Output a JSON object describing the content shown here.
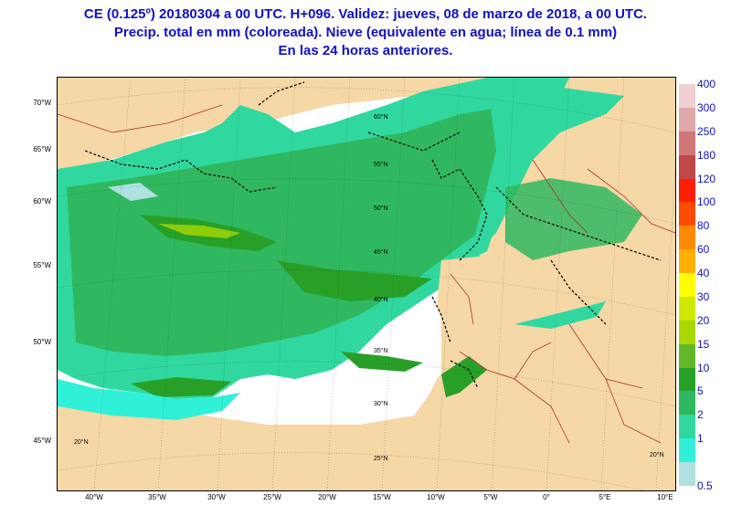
{
  "title": {
    "line1": "CE (0.125º) 20180304  a 00 UTC.  H+096. Validez: jueves, 08 de marzo de 2018,  a  00 UTC.",
    "line2": "Precip. total en mm (coloreada). Nieve (equivalente en agua; línea de 0.1 mm)",
    "line3": "En las 24 horas anteriores."
  },
  "legend": {
    "levels": [
      {
        "label": "400",
        "color": "#f0d0d0"
      },
      {
        "label": "300",
        "color": "#e0a8a8"
      },
      {
        "label": "250",
        "color": "#d07878"
      },
      {
        "label": "180",
        "color": "#c04848"
      },
      {
        "label": "120",
        "color": "#ff1e00"
      },
      {
        "label": "100",
        "color": "#ff4a00"
      },
      {
        "label": "80",
        "color": "#ff8a00"
      },
      {
        "label": "60",
        "color": "#ffb000"
      },
      {
        "label": "40",
        "color": "#ffff00"
      },
      {
        "label": "30",
        "color": "#d0e800"
      },
      {
        "label": "20",
        "color": "#a8d800"
      },
      {
        "label": "15",
        "color": "#60b828"
      },
      {
        "label": "10",
        "color": "#28a028"
      },
      {
        "label": "5",
        "color": "#30b860"
      },
      {
        "label": "2",
        "color": "#30d8a0"
      },
      {
        "label": "1",
        "color": "#30f0d8"
      },
      {
        "label": "0.5",
        "color": "#b0e0e0"
      }
    ]
  },
  "axes": {
    "left_labels": [
      "70°W",
      "65°W",
      "60°W",
      "55°W",
      "50°W",
      "45°W"
    ],
    "bottom_labels": [
      "40°W",
      "35°W",
      "30°W",
      "25°W",
      "20°W",
      "15°W",
      "10°W",
      "5°W",
      "0°",
      "5°E",
      "10°E"
    ],
    "inner_lat_labels": [
      "60°N",
      "55°N",
      "50°N",
      "45°N",
      "40°N",
      "35°N",
      "30°N",
      "25°N",
      "20°N",
      "20°N"
    ]
  },
  "colors": {
    "land": "#f6d7a6",
    "border": "#b03030",
    "snow_line": "#000000",
    "title": "#1010c8"
  }
}
